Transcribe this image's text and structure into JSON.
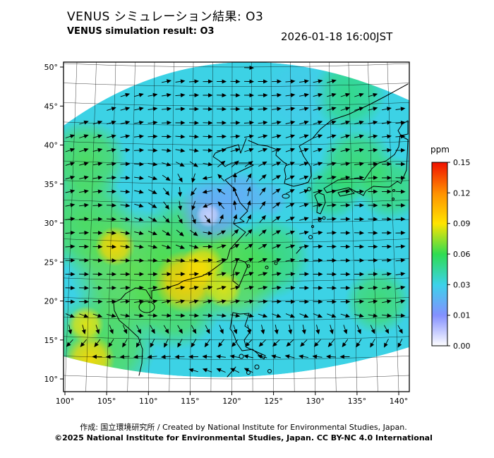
{
  "header": {
    "title_jp": "VENUS シミュレーション結果: O3",
    "title_en": "VENUS simulation result: O3",
    "datetime": "2026-01-18 16:00JST"
  },
  "axes": {
    "x_ticks": [
      "100°",
      "105°",
      "110°",
      "115°",
      "120°",
      "125°",
      "130°",
      "135°",
      "140°"
    ],
    "y_ticks": [
      "50°",
      "45°",
      "40°",
      "35°",
      "30°",
      "25°",
      "20°",
      "15°",
      "10°"
    ]
  },
  "colorbar": {
    "unit": "ppm",
    "unit_color": "#e00000",
    "ticks": [
      "0.15",
      "0.12",
      "0.09",
      "0.06",
      "0.03",
      "0.01",
      "0.00"
    ]
  },
  "footer": {
    "credit": "作成: 国立環境研究所 / Created by National Institute for Environmental Studies, Japan.",
    "copyright": "©2025 National Institute for Environmental Studies, Japan. CC BY-NC 4.0 International"
  },
  "chart_data": {
    "type": "heatmap",
    "title": "VENUS simulation result: O3",
    "title_jp": "VENUS シミュレーション結果: O3",
    "variable": "O3",
    "unit": "ppm",
    "datetime": "2026-01-18 16:00JST",
    "lon_ticks": [
      100,
      105,
      110,
      115,
      120,
      125,
      130,
      135,
      140
    ],
    "lat_ticks": [
      10,
      15,
      20,
      25,
      30,
      35,
      40,
      45,
      50
    ],
    "color_levels": [
      0,
      0.01,
      0.03,
      0.06,
      0.09,
      0.12,
      0.15
    ],
    "level_colors": [
      "#ffffff",
      "#8490ff",
      "#3cd2ea",
      "#2edc52",
      "#ffe400",
      "#ff9000",
      "#f01000"
    ],
    "background_ppm": 0.031,
    "overlay": "wind vector arrows",
    "features": [
      {
        "lon": 102.5,
        "lat": 38,
        "r_deg": 5,
        "ppm": 0.065,
        "opacity": 0.8
      },
      {
        "lon": 102.5,
        "lat": 30,
        "r_deg": 6,
        "ppm": 0.065,
        "opacity": 0.8
      },
      {
        "lon": 108,
        "lat": 24,
        "r_deg": 7.5,
        "ppm": 0.068,
        "opacity": 0.85
      },
      {
        "lon": 115,
        "lat": 27,
        "r_deg": 6.5,
        "ppm": 0.064,
        "opacity": 0.8
      },
      {
        "lon": 120,
        "lat": 23.5,
        "r_deg": 6,
        "ppm": 0.068,
        "opacity": 0.85
      },
      {
        "lon": 113,
        "lat": 20,
        "r_deg": 6,
        "ppm": 0.065,
        "opacity": 0.8
      },
      {
        "lon": 104.5,
        "lat": 14.5,
        "r_deg": 6.5,
        "ppm": 0.066,
        "opacity": 0.8
      },
      {
        "lon": 124.5,
        "lat": 25.5,
        "r_deg": 5,
        "ppm": 0.062,
        "opacity": 0.7
      },
      {
        "lon": 135,
        "lat": 37.5,
        "r_deg": 4.5,
        "ppm": 0.062,
        "opacity": 0.7
      },
      {
        "lon": 139,
        "lat": 34.5,
        "r_deg": 4,
        "ppm": 0.062,
        "opacity": 0.65
      },
      {
        "lon": 134,
        "lat": 46.5,
        "r_deg": 4.5,
        "ppm": 0.06,
        "opacity": 0.6
      },
      {
        "lon": 137.5,
        "lat": 20,
        "r_deg": 4,
        "ppm": 0.063,
        "opacity": 0.7
      },
      {
        "lon": 132,
        "lat": 34,
        "r_deg": 3.5,
        "ppm": 0.06,
        "opacity": 0.6
      },
      {
        "lon": 106,
        "lat": 27,
        "r_deg": 2.4,
        "ppm": 0.095,
        "opacity": 0.9
      },
      {
        "lon": 114.5,
        "lat": 22.5,
        "r_deg": 3.8,
        "ppm": 0.098,
        "opacity": 0.95
      },
      {
        "lon": 116.5,
        "lat": 24.5,
        "r_deg": 2.6,
        "ppm": 0.092,
        "opacity": 0.85
      },
      {
        "lon": 103,
        "lat": 12.5,
        "r_deg": 3,
        "ppm": 0.094,
        "opacity": 0.9
      },
      {
        "lon": 102.5,
        "lat": 17,
        "r_deg": 2.2,
        "ppm": 0.09,
        "opacity": 0.8
      },
      {
        "lon": 119,
        "lat": 21.5,
        "r_deg": 2.2,
        "ppm": 0.09,
        "opacity": 0.75
      },
      {
        "lon": 128,
        "lat": 46.5,
        "r_deg": 4.5,
        "ppm": 0.026,
        "opacity": 0.45
      },
      {
        "lon": 117.5,
        "lat": 31.5,
        "r_deg": 4,
        "ppm": 0.016,
        "opacity": 0.9
      },
      {
        "lon": 121,
        "lat": 33.5,
        "r_deg": 3,
        "ppm": 0.018,
        "opacity": 0.85
      },
      {
        "lon": 124.5,
        "lat": 33,
        "r_deg": 2.2,
        "ppm": 0.02,
        "opacity": 0.7
      },
      {
        "lon": 117.2,
        "lat": 31,
        "r_deg": 1.5,
        "ppm": 0.004,
        "opacity": 0.9
      }
    ]
  }
}
